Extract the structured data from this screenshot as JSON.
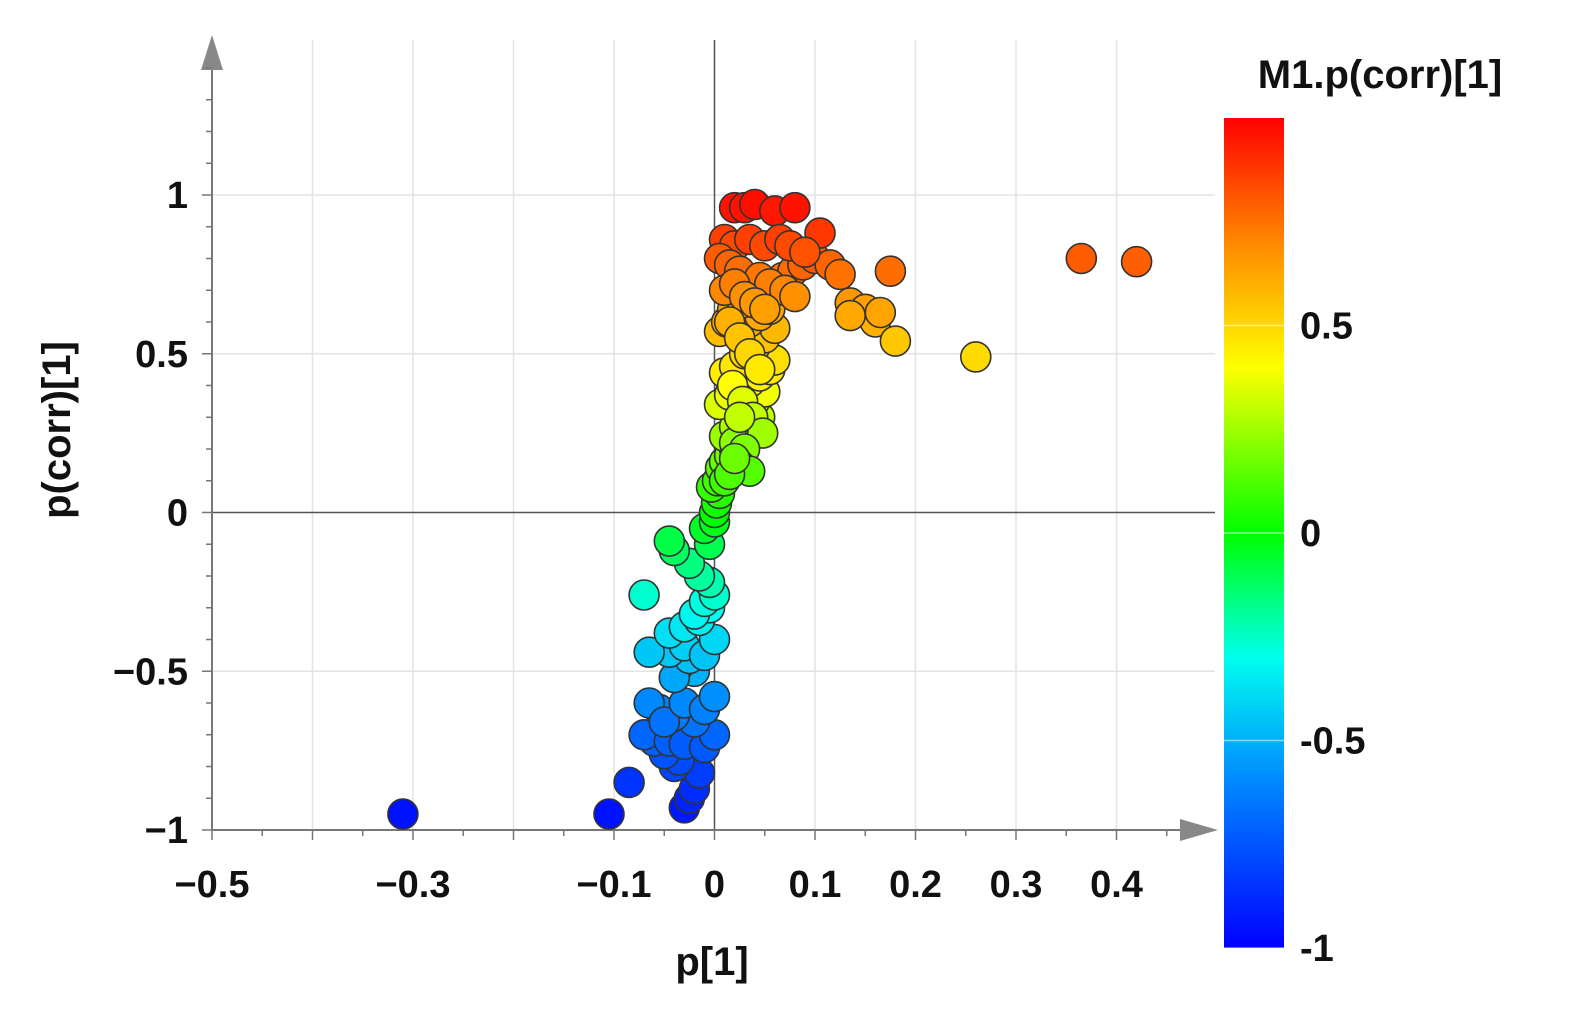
{
  "chart_data": {
    "type": "scatter",
    "title": "",
    "xlabel": "p[1]",
    "ylabel": "p(corr)[1]",
    "xlim": [
      -0.5,
      0.5
    ],
    "ylim": [
      -1,
      1.45
    ],
    "grid": true,
    "x_ticks": [
      -0.5,
      -0.3,
      -0.1,
      0,
      0.1,
      0.2,
      0.3,
      0.4
    ],
    "x_tick_labels": [
      "−0.5",
      "−0.3",
      "−0.1",
      "0",
      "0.1",
      "0.2",
      "0.3",
      "0.4"
    ],
    "y_ticks": [
      -1,
      -0.5,
      0,
      0.5,
      1
    ],
    "y_tick_labels": [
      "−1",
      "−0.5",
      "0",
      "0.5",
      "1"
    ],
    "colorbar": {
      "title": "M1.p(corr)[1]",
      "range": [
        -1,
        1
      ],
      "ticks": [
        -1,
        -0.5,
        0,
        0.5
      ],
      "tick_labels": [
        "-1",
        "-0.5",
        "0",
        "0.5"
      ],
      "colors": [
        "#0000ff",
        "#00aaff",
        "#00ffee",
        "#00ff00",
        "#ffff00",
        "#ff8800",
        "#ff0000"
      ]
    },
    "points": {
      "x": [
        -0.31,
        -0.105,
        -0.085,
        -0.03,
        -0.025,
        -0.02,
        -0.015,
        -0.04,
        -0.035,
        -0.05,
        -0.06,
        -0.07,
        -0.045,
        -0.03,
        -0.01,
        0.0,
        -0.02,
        -0.04,
        -0.055,
        -0.065,
        -0.05,
        -0.03,
        -0.01,
        0.0,
        -0.02,
        -0.035,
        -0.04,
        -0.025,
        -0.045,
        -0.03,
        -0.01,
        0.0,
        -0.065,
        -0.045,
        -0.03,
        -0.015,
        -0.005,
        -0.02,
        -0.01,
        0.0,
        -0.005,
        -0.015,
        -0.025,
        -0.07,
        -0.04,
        -0.045,
        -0.005,
        -0.01,
        0.0,
        0.0,
        0.002,
        0.005,
        -0.003,
        0.003,
        0.006,
        0.01,
        0.015,
        0.02,
        0.025,
        0.03,
        0.035,
        0.04,
        0.045,
        0.01,
        0.02,
        0.03,
        0.04,
        0.05,
        0.005,
        0.015,
        0.025,
        0.035,
        0.045,
        0.055,
        0.06,
        0.01,
        0.02,
        0.03,
        0.04,
        0.05,
        0.06,
        0.025,
        0.035,
        0.045,
        0.055,
        0.005,
        0.012,
        0.018,
        0.028,
        0.038,
        0.048,
        0.058,
        0.068,
        0.078,
        0.088,
        0.1,
        0.115,
        0.125,
        0.135,
        0.15,
        0.16,
        0.175,
        0.18,
        0.135,
        0.165,
        0.26,
        0.365,
        0.42,
        0.02,
        0.03,
        0.04,
        0.06,
        0.08,
        0.105,
        0.01,
        0.02,
        0.035,
        0.05,
        0.065,
        0.075,
        0.09,
        0.005,
        0.015,
        0.025,
        0.045,
        0.055,
        0.07,
        0.08,
        0.01,
        0.02,
        0.03,
        0.04,
        0.05,
        0.015,
        0.025,
        0.035,
        0.045,
        0.018,
        0.028,
        0.038,
        0.048,
        0.02,
        0.03,
        0.025,
        0.035,
        0.01,
        0.015,
        0.02,
        0.025
      ],
      "y": [
        -0.95,
        -0.95,
        -0.85,
        -0.93,
        -0.9,
        -0.87,
        -0.82,
        -0.8,
        -0.78,
        -0.76,
        -0.72,
        -0.7,
        -0.72,
        -0.73,
        -0.74,
        -0.7,
        -0.66,
        -0.64,
        -0.62,
        -0.6,
        -0.66,
        -0.6,
        -0.62,
        -0.58,
        -0.5,
        -0.48,
        -0.52,
        -0.46,
        -0.44,
        -0.42,
        -0.45,
        -0.4,
        -0.44,
        -0.38,
        -0.36,
        -0.34,
        -0.3,
        -0.32,
        -0.28,
        -0.26,
        -0.22,
        -0.2,
        -0.16,
        -0.26,
        -0.12,
        -0.09,
        -0.1,
        -0.05,
        -0.03,
        0.0,
        0.03,
        0.06,
        0.08,
        0.1,
        0.14,
        0.16,
        0.18,
        0.2,
        0.22,
        0.24,
        0.26,
        0.28,
        0.3,
        0.24,
        0.27,
        0.32,
        0.35,
        0.38,
        0.34,
        0.37,
        0.39,
        0.41,
        0.43,
        0.45,
        0.48,
        0.44,
        0.46,
        0.5,
        0.52,
        0.55,
        0.58,
        0.56,
        0.6,
        0.62,
        0.64,
        0.57,
        0.6,
        0.64,
        0.66,
        0.68,
        0.7,
        0.72,
        0.74,
        0.76,
        0.78,
        0.8,
        0.78,
        0.75,
        0.66,
        0.64,
        0.6,
        0.76,
        0.54,
        0.62,
        0.63,
        0.49,
        0.8,
        0.79,
        0.96,
        0.96,
        0.97,
        0.95,
        0.96,
        0.88,
        0.86,
        0.84,
        0.86,
        0.84,
        0.86,
        0.84,
        0.82,
        0.8,
        0.78,
        0.76,
        0.74,
        0.72,
        0.7,
        0.68,
        0.7,
        0.72,
        0.68,
        0.66,
        0.64,
        0.6,
        0.55,
        0.5,
        0.45,
        0.4,
        0.35,
        0.3,
        0.25,
        0.22,
        0.2,
        0.15,
        0.13,
        0.1,
        0.12,
        0.17,
        0.3
      ]
    }
  }
}
